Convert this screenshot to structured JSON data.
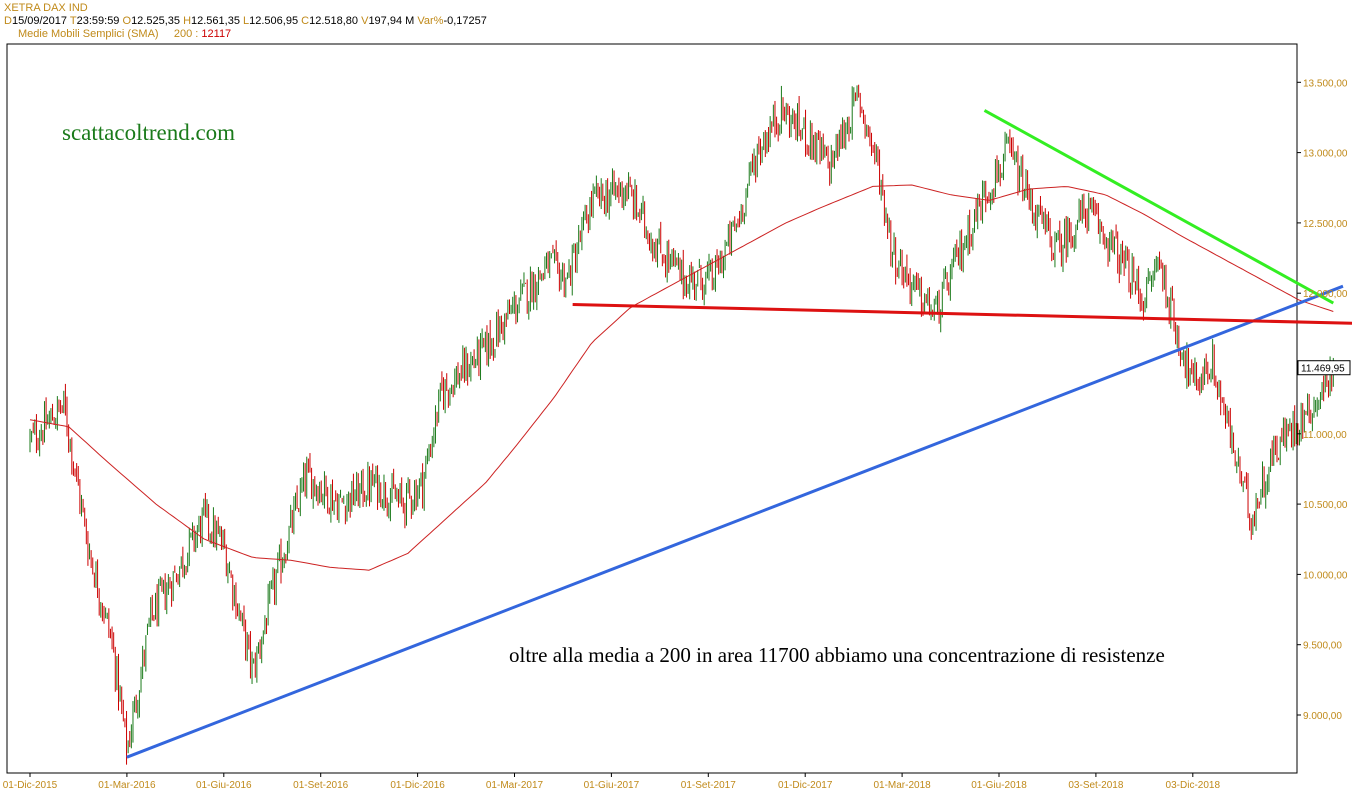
{
  "header": {
    "instrument": "XETRA DAX IND",
    "d_key": "D",
    "date": "15/09/2017",
    "t_key": "T",
    "time": "23:59:59",
    "o_key": "O",
    "open": "12.525,35",
    "h_key": "H",
    "high": "12.561,35",
    "l_key": "L",
    "low": "12.506,95",
    "c_key": "C",
    "close": "12.518,80",
    "v_key": "V",
    "volume": "197,94 M",
    "var_key": "Var%",
    "var": "-0,17257",
    "indicator": "Medie Mobili Semplici (SMA)",
    "period": "200 :",
    "indicator_value": "12117"
  },
  "watermark": "scattacoltrend.com",
  "annotation": "oltre alla media a 200 in area 11700 abbiamo una concentrazione di resistenze",
  "last_price_label": "11.469,95",
  "colors": {
    "up": "#1a7a1a",
    "down": "#cc0000",
    "sma": "#cc2222",
    "support_trendline": "#3366dd",
    "resistance_horizontal": "#dd1111",
    "downtrend_line": "#33ee22",
    "axis_labels": "#c08a1a"
  },
  "chart_data": {
    "type": "candlestick",
    "title": "XETRA DAX IND",
    "series_overlay": "SMA 200",
    "ylim": [
      8600,
      13750
    ],
    "y_ticks": [
      {
        "value": 9000,
        "label": "9.000,00"
      },
      {
        "value": 9500,
        "label": "9.500,00"
      },
      {
        "value": 10000,
        "label": "10.000,00"
      },
      {
        "value": 10500,
        "label": "10.500,00"
      },
      {
        "value": 11000,
        "label": "11.000,00"
      },
      {
        "value": 11500,
        "label": "11.500,00"
      },
      {
        "value": 12000,
        "label": "12.000,00"
      },
      {
        "value": 12500,
        "label": "12.500,00"
      },
      {
        "value": 13000,
        "label": "13.000,00"
      },
      {
        "value": 13500,
        "label": "13.500,00"
      }
    ],
    "x_ticks": [
      "01-Dic-2015",
      "01-Mar-2016",
      "01-Giu-2016",
      "01-Set-2016",
      "01-Dic-2016",
      "01-Mar-2017",
      "01-Giu-2017",
      "01-Set-2017",
      "01-Dic-2017",
      "01-Mar-2018",
      "01-Giu-2018",
      "03-Set-2018",
      "03-Dic-2018"
    ],
    "price_path": [
      {
        "t": 0,
        "v": 10950
      },
      {
        "t": 0.35,
        "v": 11200
      },
      {
        "t": 0.6,
        "v": 10200
      },
      {
        "t": 0.85,
        "v": 9500
      },
      {
        "t": 1.0,
        "v": 8750
      },
      {
        "t": 1.25,
        "v": 9700
      },
      {
        "t": 1.5,
        "v": 10000
      },
      {
        "t": 1.8,
        "v": 10400
      },
      {
        "t": 2.0,
        "v": 10200
      },
      {
        "t": 2.3,
        "v": 9300
      },
      {
        "t": 2.55,
        "v": 10000
      },
      {
        "t": 2.85,
        "v": 10700
      },
      {
        "t": 3.2,
        "v": 10500
      },
      {
        "t": 3.55,
        "v": 10650
      },
      {
        "t": 3.85,
        "v": 10500
      },
      {
        "t": 4.05,
        "v": 10650
      },
      {
        "t": 4.25,
        "v": 11300
      },
      {
        "t": 4.7,
        "v": 11600
      },
      {
        "t": 5.0,
        "v": 11900
      },
      {
        "t": 5.35,
        "v": 12200
      },
      {
        "t": 5.55,
        "v": 12100
      },
      {
        "t": 5.8,
        "v": 12650
      },
      {
        "t": 6.15,
        "v": 12750
      },
      {
        "t": 6.45,
        "v": 12350
      },
      {
        "t": 6.75,
        "v": 12100
      },
      {
        "t": 7.05,
        "v": 12100
      },
      {
        "t": 7.3,
        "v": 12500
      },
      {
        "t": 7.5,
        "v": 13000
      },
      {
        "t": 7.75,
        "v": 13300
      },
      {
        "t": 8.05,
        "v": 13100
      },
      {
        "t": 8.25,
        "v": 12900
      },
      {
        "t": 8.55,
        "v": 13400
      },
      {
        "t": 8.75,
        "v": 12900
      },
      {
        "t": 8.9,
        "v": 12300
      },
      {
        "t": 9.15,
        "v": 12000
      },
      {
        "t": 9.35,
        "v": 11850
      },
      {
        "t": 9.6,
        "v": 12300
      },
      {
        "t": 9.85,
        "v": 12700
      },
      {
        "t": 10.1,
        "v": 13000
      },
      {
        "t": 10.35,
        "v": 12600
      },
      {
        "t": 10.6,
        "v": 12300
      },
      {
        "t": 10.9,
        "v": 12600
      },
      {
        "t": 11.2,
        "v": 12300
      },
      {
        "t": 11.5,
        "v": 11950
      },
      {
        "t": 11.65,
        "v": 12250
      },
      {
        "t": 11.8,
        "v": 11800
      },
      {
        "t": 12.0,
        "v": 11350
      },
      {
        "t": 12.2,
        "v": 11500
      },
      {
        "t": 12.45,
        "v": 10800
      },
      {
        "t": 12.6,
        "v": 10400
      },
      {
        "t": 12.85,
        "v": 10900
      },
      {
        "t": 13.1,
        "v": 11100
      },
      {
        "t": 13.3,
        "v": 11250
      },
      {
        "t": 13.45,
        "v": 11470
      }
    ],
    "sma200_path": [
      {
        "t": 0,
        "v": 11100
      },
      {
        "t": 0.4,
        "v": 11050
      },
      {
        "t": 0.8,
        "v": 10800
      },
      {
        "t": 1.3,
        "v": 10500
      },
      {
        "t": 1.8,
        "v": 10250
      },
      {
        "t": 2.3,
        "v": 10120
      },
      {
        "t": 2.7,
        "v": 10100
      },
      {
        "t": 3.1,
        "v": 10050
      },
      {
        "t": 3.5,
        "v": 10030
      },
      {
        "t": 3.9,
        "v": 10150
      },
      {
        "t": 4.3,
        "v": 10400
      },
      {
        "t": 4.7,
        "v": 10650
      },
      {
        "t": 5.0,
        "v": 10900
      },
      {
        "t": 5.4,
        "v": 11250
      },
      {
        "t": 5.8,
        "v": 11650
      },
      {
        "t": 6.2,
        "v": 11900
      },
      {
        "t": 6.6,
        "v": 12050
      },
      {
        "t": 7.0,
        "v": 12200
      },
      {
        "t": 7.4,
        "v": 12350
      },
      {
        "t": 7.8,
        "v": 12500
      },
      {
        "t": 8.2,
        "v": 12620
      },
      {
        "t": 8.7,
        "v": 12760
      },
      {
        "t": 9.1,
        "v": 12770
      },
      {
        "t": 9.5,
        "v": 12700
      },
      {
        "t": 9.9,
        "v": 12660
      },
      {
        "t": 10.3,
        "v": 12740
      },
      {
        "t": 10.7,
        "v": 12760
      },
      {
        "t": 11.1,
        "v": 12700
      },
      {
        "t": 11.5,
        "v": 12560
      },
      {
        "t": 11.9,
        "v": 12400
      },
      {
        "t": 12.3,
        "v": 12250
      },
      {
        "t": 12.7,
        "v": 12100
      },
      {
        "t": 13.1,
        "v": 11950
      },
      {
        "t": 13.45,
        "v": 11870
      }
    ],
    "trendlines": [
      {
        "name": "support",
        "from": {
          "t": 1.0,
          "v": 8700
        },
        "to": {
          "t": 13.55,
          "v": 12050
        },
        "color": "#3366dd"
      },
      {
        "name": "resistance",
        "from": {
          "t": 5.6,
          "v": 11920
        },
        "to": {
          "t": 14.0,
          "v": 11780
        },
        "color": "#dd1111"
      },
      {
        "name": "downtrend",
        "from": {
          "t": 9.85,
          "v": 13300
        },
        "to": {
          "t": 13.45,
          "v": 11930
        },
        "color": "#33ee22"
      }
    ],
    "last_price": 11469.95
  }
}
